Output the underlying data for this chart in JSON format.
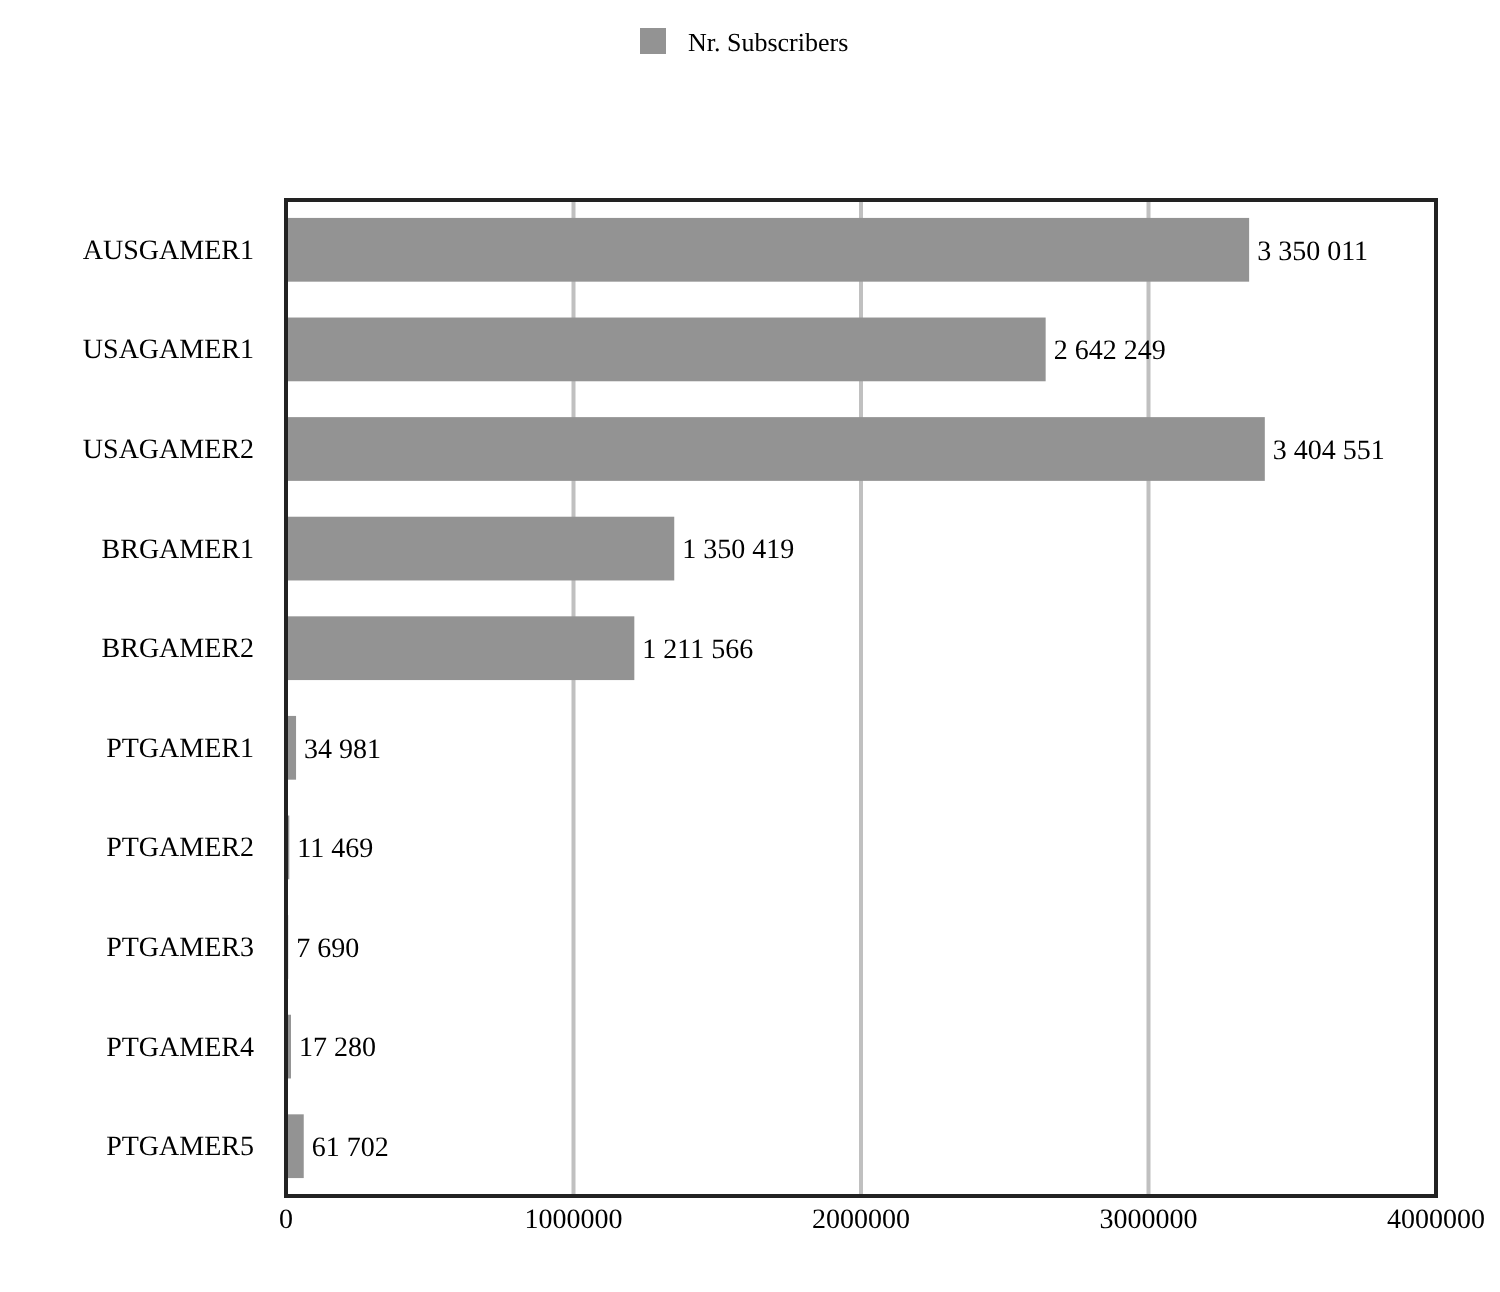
{
  "chart_data": {
    "type": "bar",
    "orientation": "horizontal",
    "categories": [
      "AUSGAMER1",
      "USAGAMER1",
      "USAGAMER2",
      "BRGAMER1",
      "BRGAMER2",
      "PTGAMER1",
      "PTGAMER2",
      "PTGAMER3",
      "PTGAMER4",
      "PTGAMER5"
    ],
    "series": [
      {
        "name": "Nr. Subscribers",
        "color": "#939393",
        "values": [
          3350011,
          2642249,
          3404551,
          1350419,
          1211566,
          34981,
          11469,
          7690,
          17280,
          61702
        ],
        "value_labels": [
          "3 350 011",
          "2 642 249",
          "3 404 551",
          "1 350 419",
          "1 211 566",
          "34 981",
          "11 469",
          "7 690",
          "17 280",
          "61 702"
        ]
      }
    ],
    "xlim": [
      0,
      4000000
    ],
    "xticks": [
      0,
      1000000,
      2000000,
      3000000,
      4000000
    ],
    "grid": "x",
    "legend": "top"
  }
}
